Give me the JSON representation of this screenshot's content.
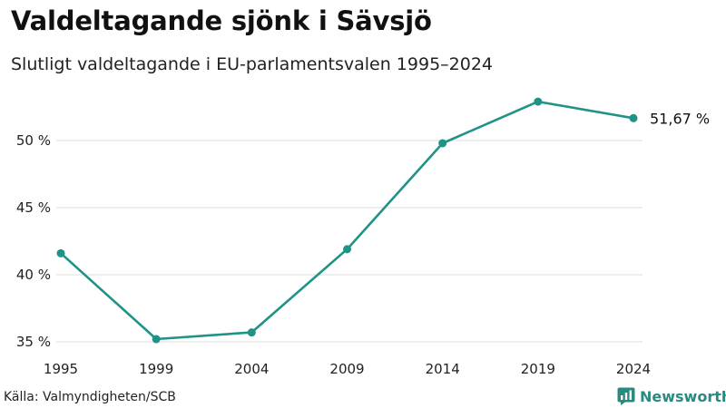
{
  "header": {
    "title": "Valdeltagande sjönk i Sävsjö",
    "subtitle": "Slutligt valdeltagande i EU-parlamentsvalen 1995–2024"
  },
  "footer": {
    "source": "Källa: Valmyndigheten/SCB",
    "brand": "Newsworthy"
  },
  "colors": {
    "line": "#1f9385",
    "grid": "#dcdcdc",
    "brand": "#2a8a80"
  },
  "chart_data": {
    "type": "line",
    "title": "Valdeltagande sjönk i Sävsjö",
    "subtitle": "Slutligt valdeltagande i EU-parlamentsvalen 1995–2024",
    "xlabel": "",
    "ylabel": "",
    "x": [
      "1995",
      "1999",
      "2004",
      "2009",
      "2014",
      "2019",
      "2024"
    ],
    "series": [
      {
        "values": [
          41.6,
          35.2,
          35.7,
          41.9,
          49.8,
          52.9,
          51.67
        ]
      }
    ],
    "y_ticks": [
      35,
      40,
      45,
      50
    ],
    "y_tick_labels": [
      "35 %",
      "40 %",
      "45 %",
      "50 %"
    ],
    "ylim": [
      34.5,
      54.5
    ],
    "grid": "horizontal",
    "end_label": "51,67 %"
  }
}
